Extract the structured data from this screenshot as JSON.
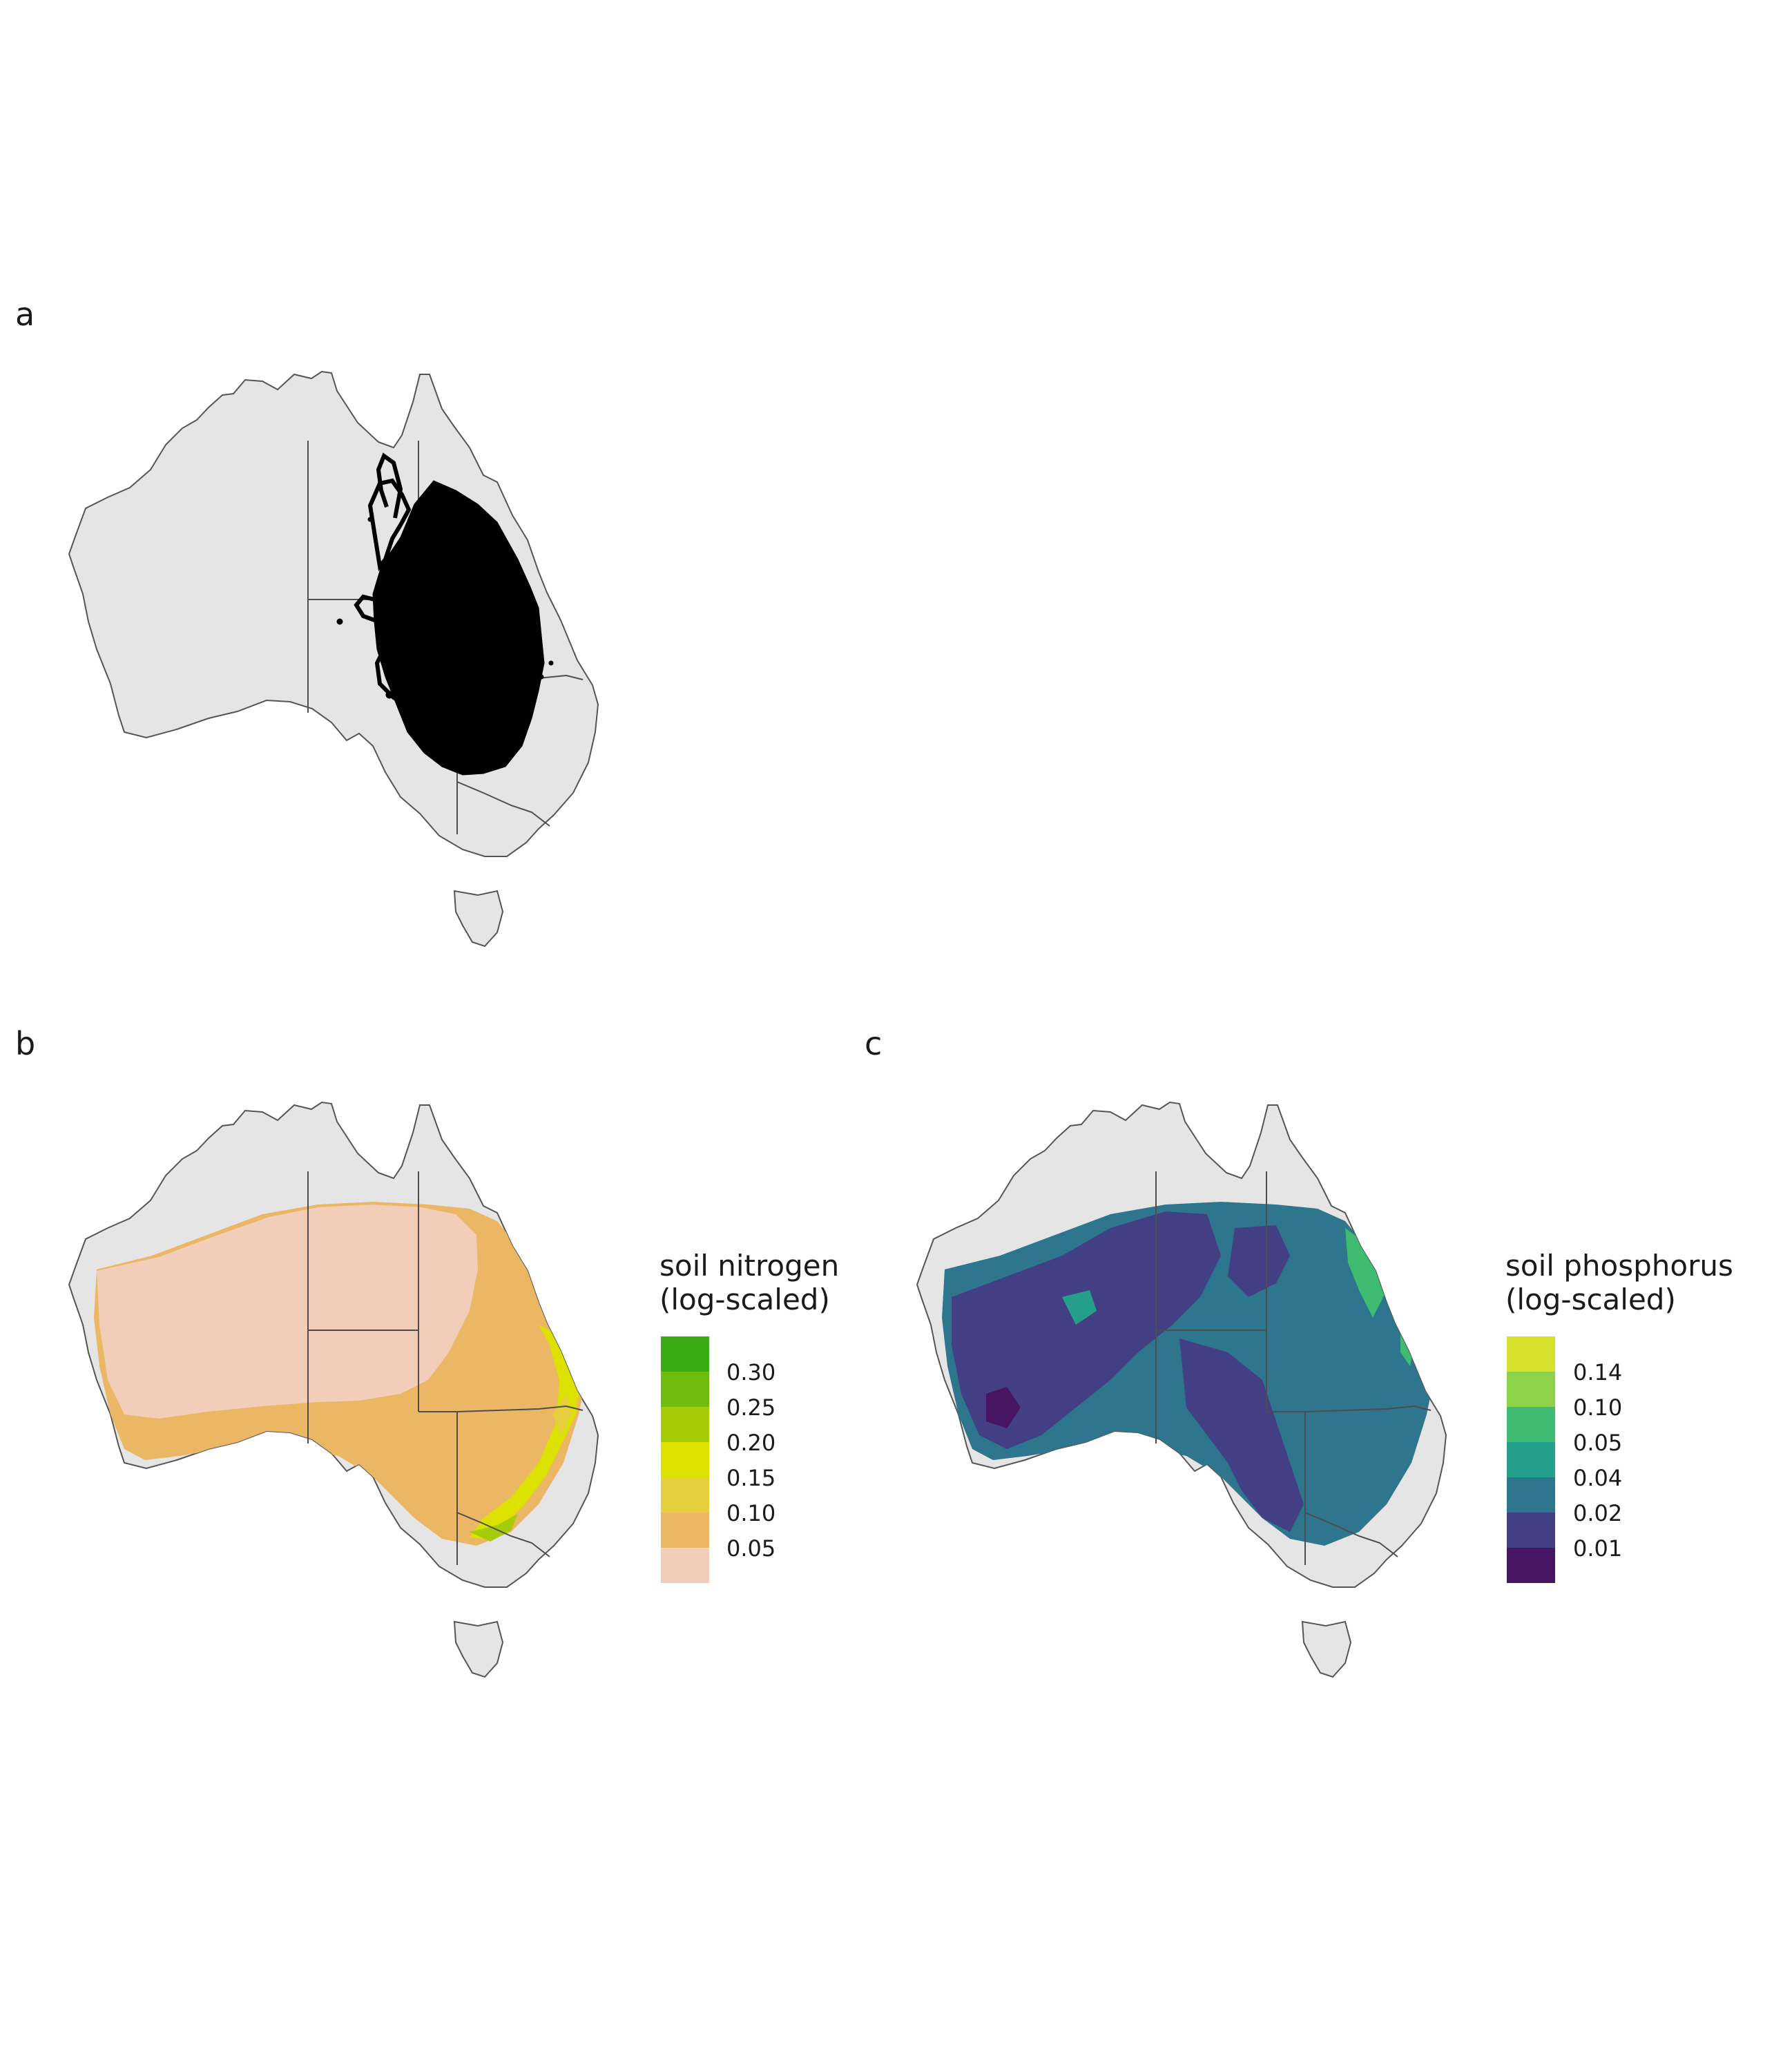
{
  "panels": [
    {
      "label": "a"
    },
    {
      "label": "b",
      "legend": {
        "title": "soil nitrogen\n(log-scaled)",
        "breaks": [
          "0.30",
          "0.25",
          "0.20",
          "0.15",
          "0.10",
          "0.05"
        ],
        "colors": [
          "#3aab12",
          "#70bb0c",
          "#a6cc05",
          "#dde100",
          "#e6cf3d",
          "#ebb765",
          "#f1cdba"
        ]
      }
    },
    {
      "label": "c",
      "legend": {
        "title": "soil phosphorus\n(log-scaled)",
        "breaks": [
          "0.14",
          "0.10",
          "0.05",
          "0.04",
          "0.02",
          "0.01"
        ],
        "colors": [
          "#d5e12b",
          "#8ed24a",
          "#3fbb72",
          "#249f8b",
          "#2d768e",
          "#433f85",
          "#481563"
        ]
      }
    }
  ],
  "map_colors": {
    "land": "#e5e5e5",
    "border": "#4d4d4d",
    "points": "#000000"
  }
}
